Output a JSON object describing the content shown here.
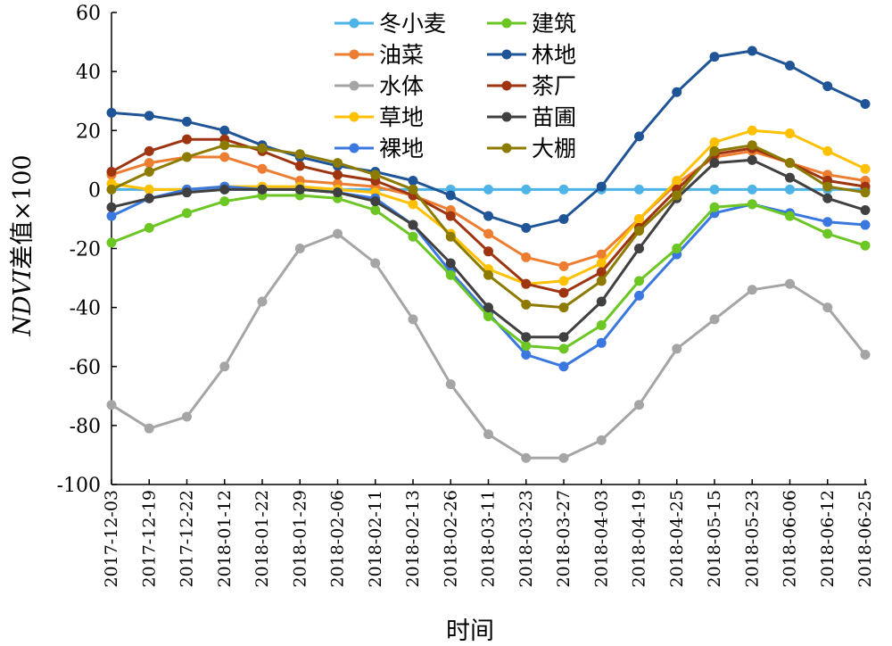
{
  "chart_data": {
    "type": "line",
    "xlabel": "时间",
    "ylabel_italic": "NDVI",
    "ylabel_rest": "差值×100",
    "ylim": [
      -100,
      60
    ],
    "yticks": [
      60,
      40,
      20,
      0,
      -20,
      -40,
      -60,
      -80,
      -100
    ],
    "grid": false,
    "legend_position": "top-center",
    "legend_columns": 2,
    "categories": [
      "2017-12-03",
      "2017-12-19",
      "2017-12-22",
      "2018-01-12",
      "2018-01-22",
      "2018-01-29",
      "2018-02-06",
      "2018-02-11",
      "2018-02-13",
      "2018-02-26",
      "2018-03-11",
      "2018-03-23",
      "2018-03-27",
      "2018-04-03",
      "2018-04-19",
      "2018-04-25",
      "2018-05-15",
      "2018-05-23",
      "2018-06-06",
      "2018-06-12",
      "2018-06-25"
    ],
    "series": [
      {
        "name": "冬小麦",
        "color": "#4eb3e6",
        "values": [
          0,
          0,
          0,
          0,
          0,
          0,
          0,
          0,
          0,
          0,
          0,
          0,
          0,
          0,
          0,
          0,
          0,
          0,
          0,
          0,
          0
        ]
      },
      {
        "name": "油菜",
        "color": "#ed7d31",
        "values": [
          5,
          9,
          11,
          11,
          7,
          3,
          2,
          1,
          -2,
          -7,
          -15,
          -23,
          -26,
          -22,
          -10,
          2,
          11,
          13,
          9,
          5,
          3
        ]
      },
      {
        "name": "水体",
        "color": "#a5a5a5",
        "values": [
          -73,
          -81,
          -77,
          -60,
          -38,
          -20,
          -15,
          -25,
          -44,
          -66,
          -83,
          -91,
          -91,
          -85,
          -73,
          -54,
          -44,
          -34,
          -32,
          -40,
          -56
        ]
      },
      {
        "name": "草地",
        "color": "#ffc000",
        "values": [
          2,
          0,
          0,
          1,
          1,
          1,
          0,
          -1,
          -5,
          -15,
          -27,
          -32,
          -31,
          -25,
          -10,
          3,
          16,
          20,
          19,
          13,
          7
        ]
      },
      {
        "name": "裸地",
        "color": "#3a78e0",
        "values": [
          -9,
          -3,
          0,
          1,
          0,
          0,
          -1,
          -3,
          -12,
          -28,
          -42,
          -56,
          -60,
          -52,
          -36,
          -22,
          -8,
          -5,
          -8,
          -11,
          -12
        ]
      },
      {
        "name": "建筑",
        "color": "#6cc624",
        "values": [
          -18,
          -13,
          -8,
          -4,
          -2,
          -2,
          -3,
          -7,
          -16,
          -29,
          -43,
          -53,
          -54,
          -46,
          -31,
          -20,
          -6,
          -5,
          -9,
          -15,
          -19
        ]
      },
      {
        "name": "林地",
        "color": "#1f5496",
        "values": [
          26,
          25,
          23,
          20,
          15,
          11,
          8,
          6,
          3,
          -2,
          -9,
          -13,
          -10,
          1,
          18,
          33,
          45,
          47,
          42,
          35,
          29
        ]
      },
      {
        "name": "茶厂",
        "color": "#9e3410",
        "values": [
          6,
          13,
          17,
          17,
          13,
          8,
          5,
          3,
          -2,
          -9,
          -21,
          -32,
          -35,
          -28,
          -13,
          0,
          12,
          14,
          9,
          3,
          1
        ]
      },
      {
        "name": "苗圃",
        "color": "#404040",
        "values": [
          -6,
          -3,
          -1,
          0,
          0,
          0,
          -1,
          -4,
          -12,
          -25,
          -40,
          -50,
          -50,
          -38,
          -20,
          -3,
          9,
          10,
          4,
          -3,
          -7
        ]
      },
      {
        "name": "大棚",
        "color": "#8c7b00",
        "values": [
          0,
          6,
          11,
          15,
          14,
          12,
          9,
          5,
          0,
          -16,
          -29,
          -39,
          -40,
          -31,
          -14,
          -2,
          13,
          15,
          9,
          1,
          -1
        ]
      }
    ]
  }
}
